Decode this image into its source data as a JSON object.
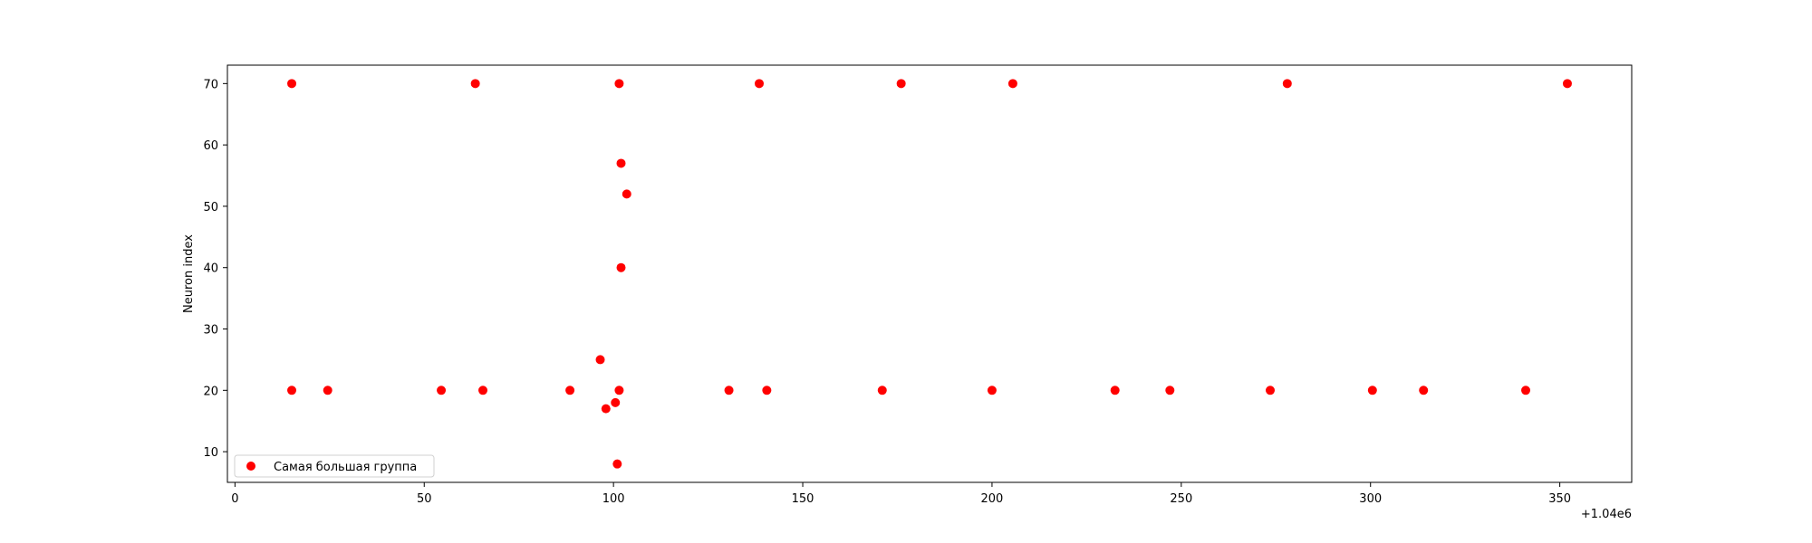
{
  "chart_data": {
    "type": "scatter",
    "title": "",
    "xlabel": "",
    "ylabel": "Neuron index",
    "x_offset_label": "+1.04e6",
    "xlim": [
      -2,
      369
    ],
    "ylim": [
      5,
      73
    ],
    "xticks": [
      0,
      50,
      100,
      150,
      200,
      250,
      300,
      350
    ],
    "yticks": [
      10,
      20,
      30,
      40,
      50,
      60,
      70
    ],
    "grid": false,
    "legend_position": "lower-left",
    "series": [
      {
        "name": "Самая большая группа",
        "color": "#ff0000",
        "points": [
          [
            15,
            70
          ],
          [
            63.5,
            70
          ],
          [
            101.5,
            70
          ],
          [
            138.5,
            70
          ],
          [
            176,
            70
          ],
          [
            205.5,
            70
          ],
          [
            278,
            70
          ],
          [
            352,
            70
          ],
          [
            102,
            57
          ],
          [
            103.5,
            52
          ],
          [
            102,
            40
          ],
          [
            96.5,
            25
          ],
          [
            15,
            20
          ],
          [
            24.5,
            20
          ],
          [
            54.5,
            20
          ],
          [
            65.5,
            20
          ],
          [
            88.5,
            20
          ],
          [
            101.5,
            20
          ],
          [
            130.5,
            20
          ],
          [
            140.5,
            20
          ],
          [
            171,
            20
          ],
          [
            200,
            20
          ],
          [
            232.5,
            20
          ],
          [
            247,
            20
          ],
          [
            273.5,
            20
          ],
          [
            300.5,
            20
          ],
          [
            314,
            20
          ],
          [
            341,
            20
          ],
          [
            100.5,
            18
          ],
          [
            98,
            17
          ],
          [
            101,
            8
          ]
        ]
      }
    ]
  }
}
